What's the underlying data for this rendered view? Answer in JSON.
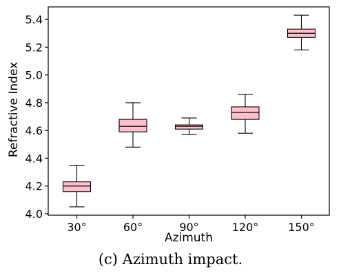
{
  "caption": "(c) Azimuth impact.",
  "chart_data": {
    "type": "box",
    "xlabel": "Azimuth",
    "ylabel": "Refractive Index",
    "ylim": [
      3.99,
      5.49
    ],
    "yticks": [
      "4.0",
      "4.2",
      "4.4",
      "4.6",
      "4.8",
      "5.0",
      "5.2",
      "5.4"
    ],
    "categories": [
      "30°",
      "60°",
      "90°",
      "120°",
      "150°"
    ],
    "boxes": [
      {
        "whisker_low": 4.05,
        "q1": 4.16,
        "median": 4.2,
        "q3": 4.23,
        "whisker_high": 4.35
      },
      {
        "whisker_low": 4.48,
        "q1": 4.59,
        "median": 4.63,
        "q3": 4.68,
        "whisker_high": 4.8
      },
      {
        "whisker_low": 4.57,
        "q1": 4.61,
        "median": 4.63,
        "q3": 4.64,
        "whisker_high": 4.69
      },
      {
        "whisker_low": 4.58,
        "q1": 4.68,
        "median": 4.73,
        "q3": 4.77,
        "whisker_high": 4.86
      },
      {
        "whisker_low": 5.18,
        "q1": 5.27,
        "median": 5.3,
        "q3": 5.33,
        "whisker_high": 5.43
      }
    ],
    "box_fill": "#ffc0cb",
    "line_color": "#000000",
    "grid": false
  }
}
